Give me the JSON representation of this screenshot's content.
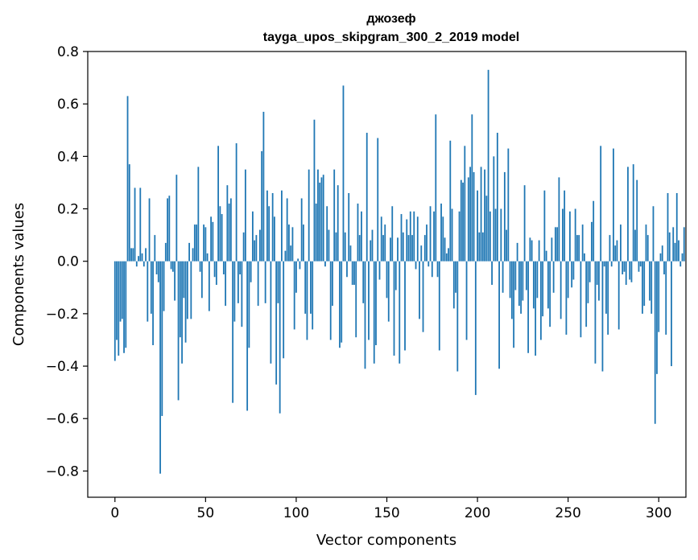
{
  "chart_data": {
    "type": "bar",
    "title": "джозеф",
    "subtitle": "tayga_upos_skipgram_300_2_2019 model",
    "xlabel": "Vector components",
    "ylabel": "Components values",
    "xlim": [
      -15,
      315
    ],
    "ylim": [
      -0.9,
      0.8
    ],
    "xticks": [
      0,
      50,
      100,
      150,
      200,
      250,
      300
    ],
    "yticks": [
      -0.8,
      -0.6,
      -0.4,
      -0.2,
      0.0,
      0.2,
      0.4,
      0.6,
      0.8
    ],
    "xtick_labels": [
      "0",
      "50",
      "100",
      "150",
      "200",
      "250",
      "300"
    ],
    "ytick_labels": [
      "−0.8",
      "−0.6",
      "−0.4",
      "−0.2",
      "0.0",
      "0.2",
      "0.4",
      "0.6",
      "0.8"
    ],
    "bar_color": "#1f77b4",
    "grid": false,
    "legend": "none",
    "values": [
      -0.38,
      -0.3,
      -0.36,
      -0.23,
      -0.22,
      -0.35,
      -0.33,
      0.63,
      0.37,
      0.05,
      0.05,
      0.28,
      -0.02,
      0.02,
      0.28,
      0.03,
      -0.02,
      0.05,
      -0.23,
      0.24,
      -0.2,
      -0.32,
      0.1,
      -0.05,
      -0.08,
      -0.81,
      -0.59,
      -0.19,
      0.07,
      0.24,
      0.25,
      -0.03,
      -0.04,
      -0.15,
      0.33,
      -0.53,
      -0.29,
      -0.39,
      -0.14,
      -0.31,
      -0.22,
      0.07,
      -0.22,
      0.05,
      0.14,
      0.14,
      0.36,
      -0.04,
      -0.14,
      0.14,
      0.13,
      0.03,
      -0.19,
      0.17,
      0.15,
      -0.06,
      -0.09,
      0.44,
      0.21,
      0.18,
      -0.05,
      -0.17,
      0.29,
      0.22,
      0.24,
      -0.54,
      -0.23,
      0.45,
      -0.16,
      -0.05,
      -0.25,
      0.11,
      0.35,
      -0.57,
      -0.33,
      -0.08,
      0.19,
      0.08,
      0.1,
      -0.17,
      0.12,
      0.42,
      0.57,
      -0.16,
      0.27,
      0.21,
      -0.39,
      0.26,
      0.17,
      -0.47,
      -0.16,
      -0.58,
      0.27,
      -0.37,
      0.04,
      0.24,
      0.14,
      0.06,
      0.13,
      -0.26,
      -0.12,
      0.01,
      -0.03,
      0.24,
      0.14,
      -0.2,
      -0.3,
      0.35,
      -0.2,
      -0.26,
      0.54,
      0.22,
      0.35,
      0.3,
      0.32,
      0.33,
      -0.02,
      0.21,
      0.12,
      -0.3,
      -0.17,
      0.35,
      0.11,
      0.29,
      -0.33,
      -0.31,
      0.67,
      0.11,
      -0.06,
      0.26,
      0.06,
      -0.09,
      -0.09,
      -0.29,
      0.22,
      0.1,
      0.19,
      -0.16,
      -0.41,
      0.49,
      -0.3,
      0.08,
      0.12,
      -0.39,
      -0.32,
      0.47,
      -0.07,
      0.17,
      0.1,
      0.14,
      -0.14,
      -0.23,
      0.09,
      0.21,
      -0.36,
      -0.11,
      0.09,
      -0.39,
      0.18,
      0.11,
      -0.34,
      0.16,
      0.1,
      0.19,
      0.1,
      0.19,
      -0.03,
      0.17,
      -0.22,
      0.06,
      -0.27,
      0.1,
      0.14,
      -0.02,
      0.21,
      -0.06,
      0.19,
      0.56,
      -0.06,
      -0.34,
      0.22,
      0.17,
      0.09,
      0.03,
      0.05,
      0.46,
      0.2,
      -0.18,
      -0.12,
      -0.42,
      0.19,
      0.31,
      0.3,
      0.44,
      -0.3,
      0.32,
      0.36,
      0.56,
      0.34,
      -0.51,
      0.27,
      0.11,
      0.36,
      0.11,
      0.35,
      0.25,
      0.73,
      0.19,
      -0.09,
      0.4,
      0.2,
      0.49,
      -0.41,
      0.2,
      -0.12,
      0.34,
      0.12,
      0.43,
      -0.14,
      -0.22,
      -0.33,
      -0.11,
      0.07,
      -0.17,
      -0.2,
      -0.15,
      0.29,
      -0.11,
      -0.35,
      0.09,
      0.08,
      -0.18,
      -0.36,
      -0.14,
      0.08,
      -0.3,
      -0.21,
      0.27,
      0.04,
      -0.18,
      -0.25,
      0.09,
      -0.12,
      0.13,
      0.13,
      0.32,
      -0.22,
      0.2,
      0.27,
      -0.28,
      -0.14,
      0.19,
      -0.1,
      -0.07,
      0.2,
      0.1,
      0.1,
      -0.29,
      0.14,
      0.03,
      -0.25,
      -0.16,
      -0.08,
      0.15,
      0.23,
      -0.39,
      -0.09,
      -0.15,
      0.44,
      -0.42,
      -0.02,
      -0.2,
      -0.28,
      0.1,
      -0.02,
      0.43,
      0.06,
      0.08,
      -0.26,
      0.14,
      -0.05,
      -0.04,
      -0.09,
      0.36,
      -0.07,
      -0.08,
      0.37,
      0.12,
      0.31,
      -0.04,
      -0.02,
      -0.2,
      -0.17,
      0.14,
      0.1,
      -0.15,
      -0.2,
      0.21,
      -0.62,
      -0.43,
      -0.27,
      0.03,
      0.06,
      -0.05,
      -0.28,
      0.26,
      0.11,
      -0.4,
      0.13,
      0.07,
      0.26,
      0.08,
      -0.02,
      0.03,
      0.13
    ]
  }
}
